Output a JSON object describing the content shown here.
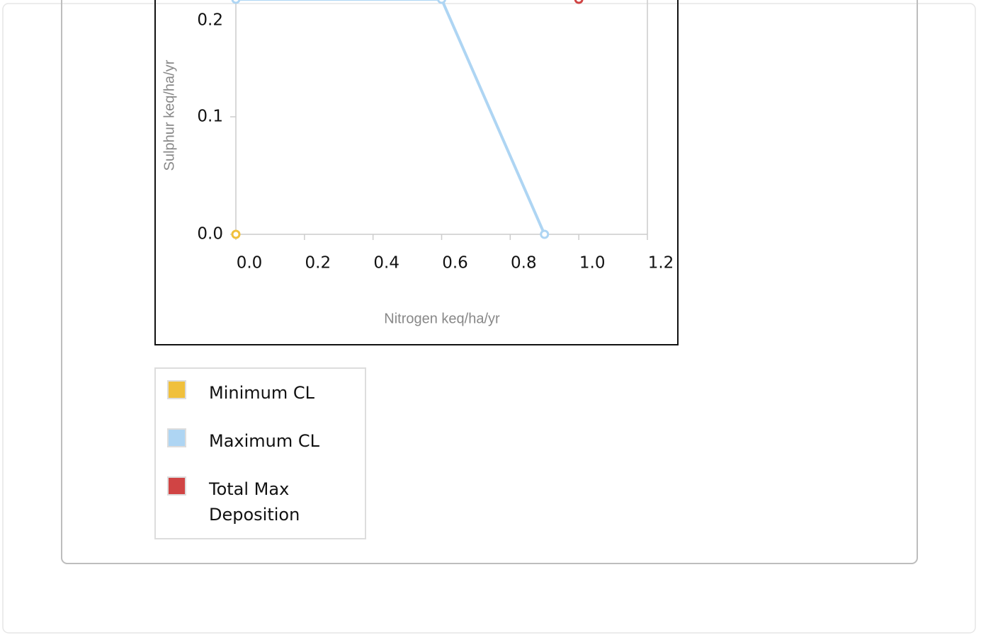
{
  "chart_data": {
    "type": "line",
    "x_label": "Nitrogen keq/ha/yr",
    "y_label": "Sulphur keq/ha/yr",
    "xlim": [
      0,
      1.2
    ],
    "ylim": [
      0,
      0.2
    ],
    "xticks": [
      {
        "value": 0,
        "label": "0.0"
      },
      0.2,
      0.4,
      0.6,
      0.8,
      {
        "value": 1,
        "label": "1.0"
      },
      1.2
    ],
    "yticks": [
      {
        "value": 0,
        "label": "0.0"
      },
      0.1,
      0.2
    ],
    "series": [
      {
        "name": "Minimum CL",
        "color": "#f0c03c",
        "x": [
          0.0
        ],
        "values": [
          0.0
        ]
      },
      {
        "name": "Maximum CL",
        "color": "#aed5f3",
        "x": [
          0.0,
          0.6,
          0.9
        ],
        "values": [
          0.2,
          0.2,
          0.0
        ]
      },
      {
        "name": "Total Max Deposition",
        "color": "#d04444",
        "x": [
          1.0
        ],
        "values": [
          0.2
        ]
      }
    ]
  }
}
